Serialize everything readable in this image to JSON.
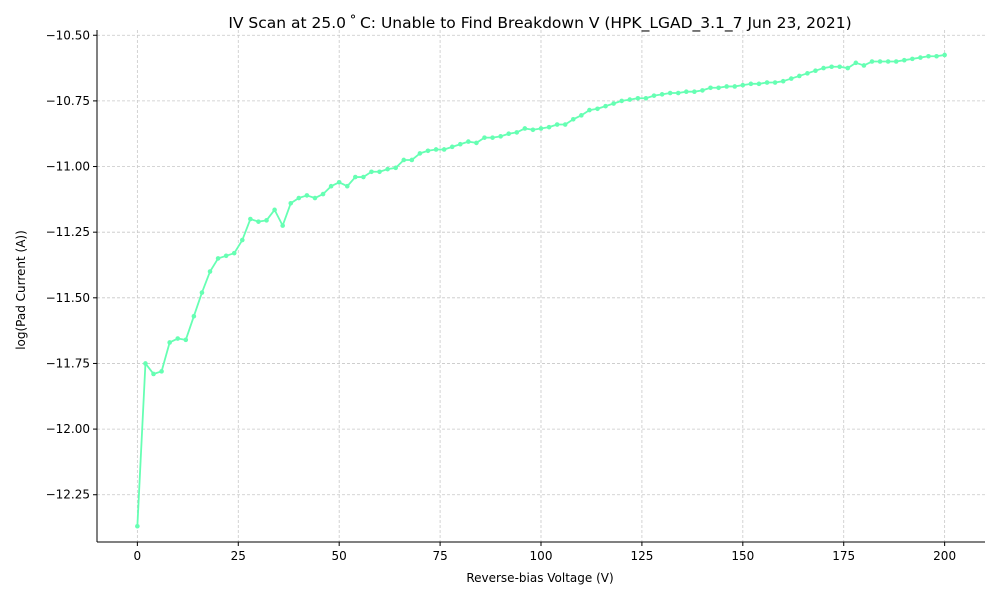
{
  "chart_data": {
    "type": "line",
    "title": "IV Scan at 25.0$^\\circ$C: Unable to Find Breakdown V (HPK_LGAD_3.1_7 Jun 23, 2021)",
    "title_display": "IV Scan at 25.0 ˚ C: Unable to Find Breakdown V (HPK_LGAD_3.1_7 Jun 23, 2021)",
    "xlabel": "Reverse-bias Voltage (V)",
    "ylabel": "log(Pad Current (A))",
    "xlim": [
      -10,
      210
    ],
    "ylim": [
      -12.43,
      -10.48
    ],
    "xticks": [
      0,
      25,
      50,
      75,
      100,
      125,
      150,
      175,
      200
    ],
    "xtick_labels": [
      "0",
      "25",
      "50",
      "75",
      "100",
      "125",
      "150",
      "175",
      "200"
    ],
    "yticks": [
      -10.5,
      -10.75,
      -11.0,
      -11.25,
      -11.5,
      -11.75,
      -12.0,
      -12.25
    ],
    "ytick_labels": [
      "−10.50",
      "−10.75",
      "−11.00",
      "−11.25",
      "−11.50",
      "−11.75",
      "−12.00",
      "−12.25"
    ],
    "grid": true,
    "legend": "none",
    "series_color": "#66ffb3",
    "grid_color": "#c8c8c8",
    "series": [
      {
        "x": [
          0,
          2,
          4,
          6,
          8,
          10,
          12,
          14,
          16,
          18,
          20,
          22,
          24,
          26,
          28,
          30,
          32,
          34,
          36,
          38,
          40,
          42,
          44,
          46,
          48,
          50,
          52,
          54,
          56,
          58,
          60,
          62,
          64,
          66,
          68,
          70,
          72,
          74,
          76,
          78,
          80,
          82,
          84,
          86,
          88,
          90,
          92,
          94,
          96,
          98,
          100,
          102,
          104,
          106,
          108,
          110,
          112,
          114,
          116,
          118,
          120,
          122,
          124,
          126,
          128,
          130,
          132,
          134,
          136,
          138,
          140,
          142,
          144,
          146,
          148,
          150,
          152,
          154,
          156,
          158,
          160,
          162,
          164,
          166,
          168,
          170,
          172,
          174,
          176,
          178,
          180,
          182,
          184,
          186,
          188,
          190,
          192,
          194,
          196,
          198,
          200
        ],
        "y": [
          -12.37,
          -11.75,
          -11.79,
          -11.78,
          -11.67,
          -11.655,
          -11.66,
          -11.57,
          -11.48,
          -11.4,
          -11.35,
          -11.34,
          -11.33,
          -11.28,
          -11.2,
          -11.21,
          -11.205,
          -11.165,
          -11.225,
          -11.14,
          -11.12,
          -11.11,
          -11.12,
          -11.105,
          -11.075,
          -11.06,
          -11.075,
          -11.04,
          -11.04,
          -11.02,
          -11.02,
          -11.01,
          -11.005,
          -10.975,
          -10.975,
          -10.95,
          -10.94,
          -10.935,
          -10.935,
          -10.925,
          -10.915,
          -10.905,
          -10.91,
          -10.89,
          -10.89,
          -10.885,
          -10.875,
          -10.87,
          -10.855,
          -10.86,
          -10.855,
          -10.85,
          -10.84,
          -10.84,
          -10.82,
          -10.805,
          -10.785,
          -10.78,
          -10.77,
          -10.76,
          -10.75,
          -10.745,
          -10.74,
          -10.74,
          -10.73,
          -10.725,
          -10.72,
          -10.72,
          -10.715,
          -10.715,
          -10.71,
          -10.7,
          -10.7,
          -10.695,
          -10.695,
          -10.69,
          -10.685,
          -10.685,
          -10.68,
          -10.68,
          -10.675,
          -10.665,
          -10.655,
          -10.645,
          -10.635,
          -10.625,
          -10.62,
          -10.62,
          -10.625,
          -10.605,
          -10.615,
          -10.6,
          -10.6,
          -10.6,
          -10.6,
          -10.595,
          -10.59,
          -10.585,
          -10.58,
          -10.58,
          -10.575
        ]
      }
    ]
  }
}
